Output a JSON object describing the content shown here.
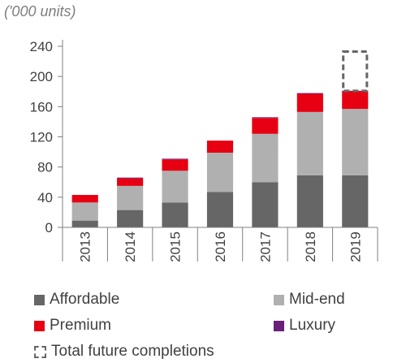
{
  "unit_label": "('000 units)",
  "colors": {
    "affordable": "#666666",
    "midend": "#b0b0b0",
    "premium": "#e60012",
    "luxury": "#6b1f7b",
    "future": "#666666",
    "axis": "#808080"
  },
  "chart_data": {
    "type": "bar",
    "stacked": true,
    "categories": [
      "2013",
      "2014",
      "2015",
      "2016",
      "2017",
      "2018",
      "2019"
    ],
    "series": [
      {
        "name": "Affordable",
        "key": "affordable",
        "values": [
          9,
          23,
          33,
          47,
          60,
          69,
          69
        ]
      },
      {
        "name": "Mid-end",
        "key": "midend",
        "values": [
          24,
          32,
          42,
          52,
          64,
          84,
          88
        ]
      },
      {
        "name": "Premium",
        "key": "premium",
        "values": [
          10,
          10,
          15,
          16,
          21,
          24,
          24
        ]
      },
      {
        "name": "Luxury",
        "key": "luxury",
        "values": [
          0,
          1,
          1,
          0,
          1,
          1,
          0
        ]
      },
      {
        "name": "Total future completions",
        "key": "future",
        "values": [
          0,
          0,
          0,
          0,
          0,
          0,
          52
        ],
        "style": "dashed-outline"
      }
    ],
    "yticks": [
      "0",
      "40",
      "80",
      "120",
      "160",
      "200",
      "240"
    ],
    "ylim": [
      0,
      240
    ],
    "grid": false,
    "legend_position": "bottom"
  },
  "legend": [
    {
      "label": "Affordable",
      "key": "affordable"
    },
    {
      "label": "Mid-end",
      "key": "midend"
    },
    {
      "label": "Premium",
      "key": "premium"
    },
    {
      "label": "Luxury",
      "key": "luxury"
    },
    {
      "label": "Total future completions",
      "key": "future"
    }
  ]
}
